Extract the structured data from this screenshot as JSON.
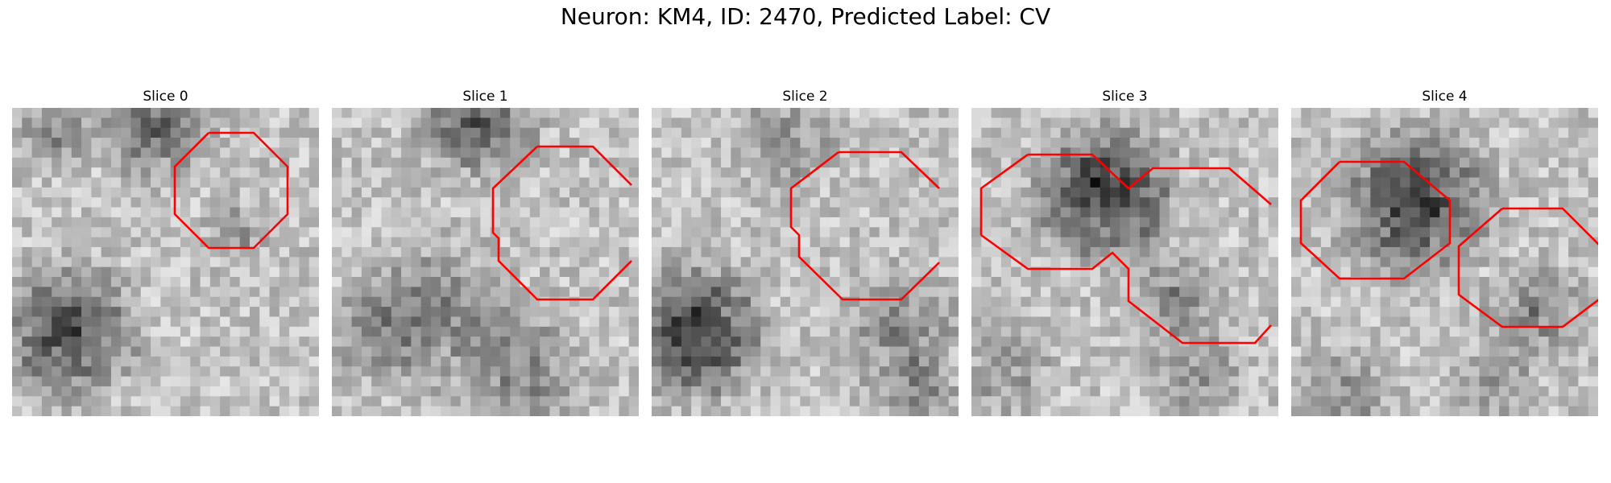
{
  "figure": {
    "title": "Neuron: KM4, ID: 2470, Predicted Label: CV",
    "outline_color": "#ff0000"
  },
  "slices": [
    {
      "title": "Slice 0"
    },
    {
      "title": "Slice 1"
    },
    {
      "title": "Slice 2"
    },
    {
      "title": "Slice 3"
    },
    {
      "title": "Slice 4"
    }
  ]
}
